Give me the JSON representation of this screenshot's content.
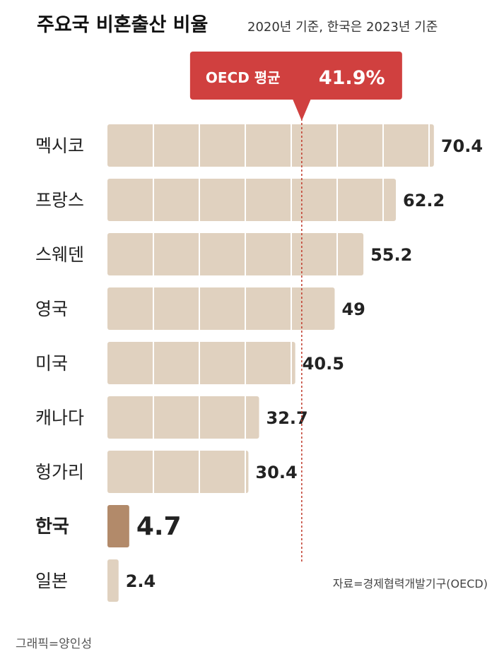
{
  "chart_data": {
    "type": "bar",
    "orientation": "horizontal",
    "title": "주요국 비혼출산 비율",
    "subtitle": "2020년 기준, 한국은 2023년 기준",
    "categories": [
      "멕시코",
      "프랑스",
      "스웨덴",
      "영국",
      "미국",
      "캐나다",
      "헝가리",
      "한국",
      "일본"
    ],
    "values": [
      70.4,
      62.2,
      55.2,
      49,
      40.5,
      32.7,
      30.4,
      4.7,
      2.4
    ],
    "value_labels": [
      "70.4",
      "62.2",
      "55.2",
      "49",
      "40.5",
      "32.7",
      "30.4",
      "4.7",
      "2.4"
    ],
    "highlight_category": "한국",
    "reference_line": {
      "label": "OECD 평균",
      "value_label": "41.9%",
      "value": 41.9
    },
    "source": "자료=경제협력개발기구(OECD)",
    "colors": {
      "bar": "#e0d1bf",
      "highlight": "#b28a6a",
      "callout": "#d0403f",
      "refline": "#c0392b",
      "grid": "#ffffff"
    }
  },
  "credit": "그래픽=양인성"
}
